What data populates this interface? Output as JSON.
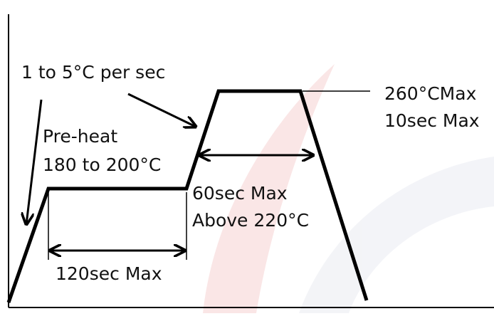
{
  "labels": {
    "ramp_rate": "1 to 5°C per sec",
    "preheat": "Pre-heat",
    "preheat_temp": "180 to 200°C",
    "peak_temp": "260°CMax",
    "peak_time": "10sec Max",
    "above_time": "60sec Max",
    "above_temp": "Above 220°C",
    "preheat_time": "120sec Max"
  }
}
